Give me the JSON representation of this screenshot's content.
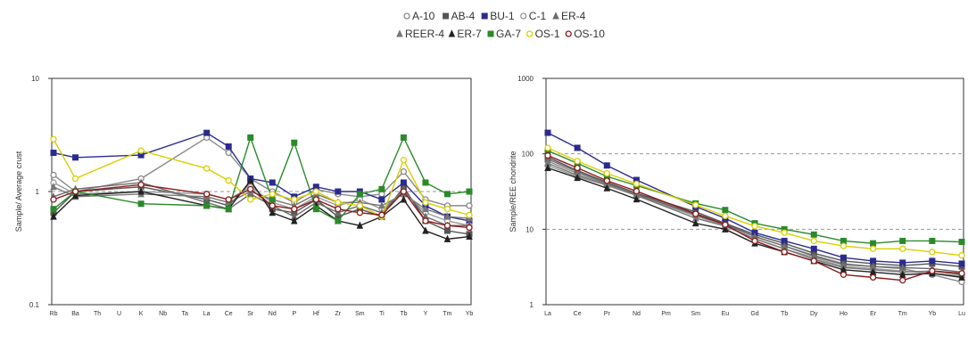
{
  "legend": {
    "entries": [
      {
        "label": "A-10",
        "color": "#8a8a8a",
        "marker": "circle"
      },
      {
        "label": "AB-4",
        "color": "#555555",
        "marker": "square"
      },
      {
        "label": "BU-1",
        "color": "#2b2b8f",
        "marker": "square"
      },
      {
        "label": "C-1",
        "color": "#999999",
        "marker": "circle"
      },
      {
        "label": "ER-4",
        "color": "#6b6b6b",
        "marker": "triangle"
      },
      {
        "label": "REER-4",
        "color": "#777777",
        "marker": "triangle"
      },
      {
        "label": "ER-7",
        "color": "#222222",
        "marker": "triangle"
      },
      {
        "label": "GA-7",
        "color": "#2a8a2a",
        "marker": "square"
      },
      {
        "label": "OS-1",
        "color": "#d8d000",
        "marker": "circle"
      },
      {
        "label": "OS-10",
        "color": "#8b1a1a",
        "marker": "circle"
      }
    ]
  },
  "chart_data": [
    {
      "type": "line",
      "ylabel": "Sample/ Average crust",
      "xlabel": "",
      "yscale": "log",
      "ylim": [
        0.1,
        10
      ],
      "ytick_labels": [
        "0.1",
        "1",
        "10"
      ],
      "grid": "dashed line at 1",
      "categories": [
        "Rb",
        "Ba",
        "Th",
        "U",
        "K",
        "Nb",
        "Ta",
        "La",
        "Ce",
        "Sr",
        "Nd",
        "P",
        "Hf",
        "Zr",
        "Sm",
        "Ti",
        "Tb",
        "Y",
        "Tm",
        "Yb"
      ],
      "series": [
        {
          "color": "#8a8a8a",
          "values": [
            1.4,
            1.0,
            null,
            null,
            1.3,
            null,
            null,
            3.0,
            2.2,
            1.3,
            1.0,
            0.8,
            1.05,
            0.95,
            0.9,
            0.95,
            1.5,
            0.85,
            0.75,
            0.75
          ]
        },
        {
          "color": "#555555",
          "values": [
            0.65,
            1.0,
            null,
            null,
            1.1,
            null,
            null,
            0.85,
            0.75,
            1.2,
            0.7,
            0.65,
            0.85,
            0.6,
            0.7,
            0.6,
            1.1,
            0.55,
            0.45,
            0.42
          ]
        },
        {
          "color": "#2b2b8f",
          "values": [
            2.2,
            2.0,
            null,
            null,
            2.1,
            null,
            null,
            3.3,
            2.5,
            1.3,
            1.2,
            0.9,
            1.1,
            1.0,
            1.0,
            0.85,
            1.2,
            0.75,
            0.6,
            0.55
          ]
        },
        {
          "color": "#999999",
          "values": [
            1.2,
            0.95,
            null,
            null,
            1.0,
            null,
            null,
            0.95,
            0.85,
            1.1,
            0.8,
            0.7,
            0.9,
            0.75,
            0.85,
            0.7,
            1.0,
            0.65,
            0.55,
            0.5
          ]
        },
        {
          "color": "#6b6b6b",
          "values": [
            0.9,
            1.05,
            null,
            null,
            1.2,
            null,
            null,
            0.8,
            0.7,
            0.95,
            0.75,
            0.6,
            0.8,
            0.65,
            0.75,
            0.65,
            1.05,
            0.6,
            0.5,
            0.5
          ]
        },
        {
          "color": "#777777",
          "values": [
            1.1,
            0.9,
            null,
            null,
            0.95,
            null,
            null,
            0.9,
            0.8,
            1.0,
            0.85,
            0.75,
            0.95,
            0.8,
            0.8,
            0.75,
            0.95,
            0.7,
            0.6,
            0.58
          ]
        },
        {
          "color": "#222222",
          "values": [
            0.6,
            0.92,
            null,
            null,
            1.0,
            null,
            null,
            0.75,
            0.7,
            1.25,
            0.65,
            0.55,
            0.75,
            0.55,
            0.5,
            0.6,
            0.85,
            0.45,
            0.38,
            0.4
          ]
        },
        {
          "color": "#2a8a2a",
          "values": [
            0.7,
            1.0,
            null,
            null,
            0.78,
            null,
            null,
            0.75,
            0.7,
            3.0,
            0.85,
            2.7,
            0.7,
            0.55,
            0.95,
            1.05,
            3.0,
            1.2,
            0.95,
            1.0
          ]
        },
        {
          "color": "#d8d000",
          "values": [
            2.9,
            1.3,
            null,
            null,
            2.3,
            null,
            null,
            1.6,
            1.25,
            0.85,
            0.95,
            0.85,
            1.0,
            0.8,
            0.75,
            0.6,
            1.9,
            0.8,
            0.7,
            0.62
          ]
        },
        {
          "color": "#8b1a1a",
          "values": [
            0.85,
            1.0,
            null,
            null,
            1.15,
            null,
            null,
            0.95,
            0.85,
            1.05,
            0.75,
            0.7,
            0.85,
            0.7,
            0.65,
            0.62,
            1.0,
            0.55,
            0.5,
            0.48
          ]
        }
      ]
    },
    {
      "type": "line",
      "ylabel": "Sample/REE chondrite",
      "xlabel": "",
      "yscale": "log",
      "ylim": [
        1,
        1000
      ],
      "ytick_labels": [
        "1",
        "10",
        "100",
        "1000"
      ],
      "grid": "dashed lines at 10 and 100",
      "categories": [
        "La",
        "Ce",
        "Pr",
        "Nd",
        "Pm",
        "Sm",
        "Eu",
        "Gd",
        "Tb",
        "Dy",
        "Ho",
        "Er",
        "Tm",
        "Yb",
        "Lu"
      ],
      "series": [
        {
          "color": "#8a8a8a",
          "values": [
            80,
            55,
            40,
            30,
            null,
            16,
            12,
            8,
            6,
            4.5,
            3.5,
            3.2,
            3.0,
            2.5,
            2.0
          ]
        },
        {
          "color": "#555555",
          "values": [
            90,
            60,
            42,
            30,
            null,
            17,
            12,
            8.5,
            6.5,
            4.8,
            3.8,
            3.5,
            3.3,
            3.5,
            3.2
          ]
        },
        {
          "color": "#2b2b8f",
          "values": [
            190,
            120,
            70,
            45,
            null,
            20,
            14,
            9,
            7,
            5.5,
            4.2,
            3.8,
            3.6,
            3.8,
            3.5
          ]
        },
        {
          "color": "#999999",
          "values": [
            70,
            50,
            38,
            28,
            null,
            15,
            11,
            7.5,
            5.5,
            4.2,
            3.2,
            3.0,
            2.8,
            2.6,
            2.4
          ]
        },
        {
          "color": "#6b6b6b",
          "values": [
            85,
            58,
            41,
            29,
            null,
            15.5,
            11.5,
            8,
            6,
            4.4,
            3.4,
            3.2,
            3.1,
            3.0,
            2.7
          ]
        },
        {
          "color": "#777777",
          "values": [
            75,
            52,
            39,
            28,
            null,
            14,
            11,
            7.5,
            5.5,
            4.0,
            3.1,
            2.9,
            2.7,
            2.8,
            2.5
          ]
        },
        {
          "color": "#222222",
          "values": [
            65,
            48,
            35,
            25,
            null,
            12,
            10,
            6.5,
            5.0,
            3.8,
            2.9,
            2.7,
            2.5,
            2.6,
            2.3
          ]
        },
        {
          "color": "#2a8a2a",
          "values": [
            110,
            75,
            50,
            38,
            null,
            22,
            18,
            12,
            10,
            8.5,
            7,
            6.5,
            7,
            7,
            6.8
          ]
        },
        {
          "color": "#d8d000",
          "values": [
            120,
            80,
            55,
            40,
            null,
            21,
            15,
            11,
            9,
            7,
            6,
            5.5,
            5.5,
            5,
            4.5
          ]
        },
        {
          "color": "#8b1a1a",
          "values": [
            95,
            65,
            44,
            32,
            null,
            16,
            11.5,
            7,
            5,
            3.8,
            2.5,
            2.3,
            2.1,
            2.8,
            2.6
          ]
        }
      ]
    }
  ]
}
